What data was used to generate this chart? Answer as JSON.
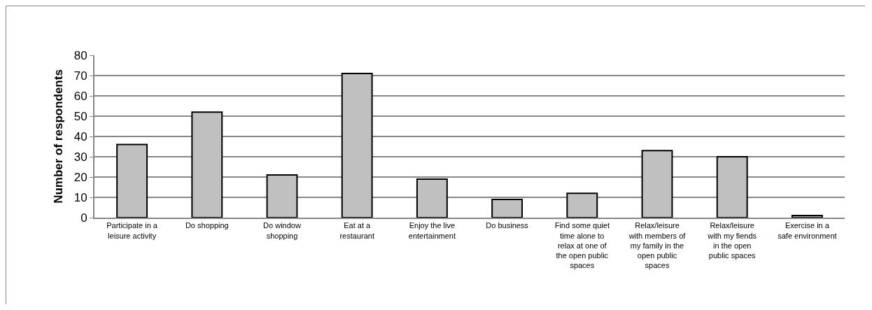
{
  "chart_data": {
    "type": "bar",
    "ylabel": "Number of respondents",
    "categories": [
      "Participate in a leisure activity",
      "Do shopping",
      "Do window shopping",
      "Eat at a restaurant",
      "Enjoy the live entertainment",
      "Do business",
      "Find some quiet time alone to relax at one of the open public spaces",
      "Relax/leisure with members of my family in the open public spaces",
      "Relax/leisure with my fiends in the open public spaces",
      "Exercise in a safe environment"
    ],
    "values": [
      36,
      52,
      21,
      71,
      19,
      9,
      12,
      33,
      30,
      1
    ],
    "color": "#c0c0c0",
    "ylim": [
      0,
      80
    ],
    "yticks": [
      0,
      10,
      20,
      30,
      40,
      50,
      60,
      70,
      80
    ],
    "grid": "y"
  }
}
